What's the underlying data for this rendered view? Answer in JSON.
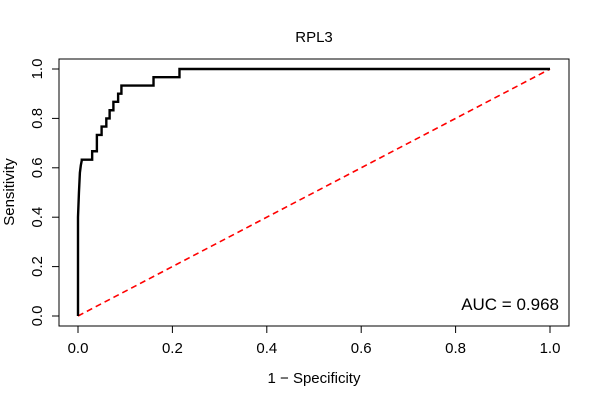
{
  "chart_data": {
    "type": "line",
    "title": "RPL3",
    "xlabel": "1 − Specificity",
    "ylabel": "Sensitivity",
    "xlim": [
      0,
      1
    ],
    "ylim": [
      0,
      1
    ],
    "xticks": [
      "0.0",
      "0.2",
      "0.4",
      "0.6",
      "0.8",
      "1.0"
    ],
    "yticks": [
      "0.0",
      "0.2",
      "0.4",
      "0.6",
      "0.8",
      "1.0"
    ],
    "grid": false,
    "annotation": "AUC = 0.968",
    "series": [
      {
        "style": "solid",
        "color": "#000000",
        "x": [
          0.0,
          0.0,
          0.002,
          0.004,
          0.006,
          0.008,
          0.008,
          0.03,
          0.03,
          0.04,
          0.04,
          0.05,
          0.05,
          0.06,
          0.06,
          0.067,
          0.067,
          0.075,
          0.075,
          0.085,
          0.085,
          0.092,
          0.092,
          0.16,
          0.16,
          0.215,
          0.215,
          1.0
        ],
        "y": [
          0.0,
          0.4,
          0.5,
          0.58,
          0.61,
          0.63,
          0.633,
          0.633,
          0.667,
          0.667,
          0.733,
          0.733,
          0.767,
          0.767,
          0.8,
          0.8,
          0.833,
          0.833,
          0.867,
          0.867,
          0.9,
          0.9,
          0.933,
          0.933,
          0.967,
          0.967,
          1.0,
          1.0
        ]
      },
      {
        "style": "dashed",
        "color": "#ff0000",
        "x": [
          0,
          1
        ],
        "y": [
          0,
          1
        ]
      }
    ]
  }
}
